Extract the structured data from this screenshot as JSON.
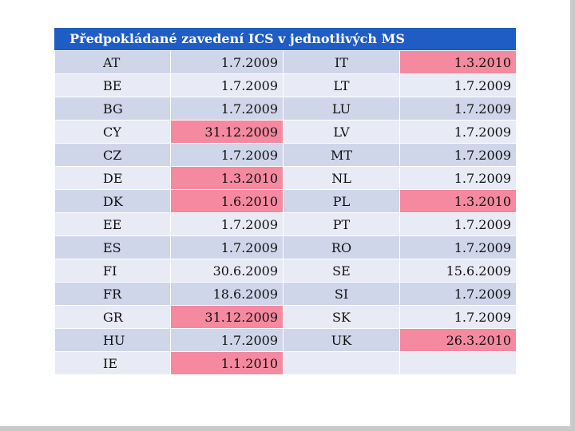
{
  "title": "Předpokládané zavedení ICS v jednotlivých MS",
  "colors": {
    "header": "#1f5cc4",
    "row_dark": "#cfd6ea",
    "row_light": "#e8ebf5",
    "highlight": "#f4899f"
  },
  "rows": [
    {
      "c1": "AT",
      "d1": "1.7.2009",
      "h1": false,
      "c2": "IT",
      "d2": "1.3.2010",
      "h2": true
    },
    {
      "c1": "BE",
      "d1": "1.7.2009",
      "h1": false,
      "c2": "LT",
      "d2": "1.7.2009",
      "h2": false
    },
    {
      "c1": "BG",
      "d1": "1.7.2009",
      "h1": false,
      "c2": "LU",
      "d2": "1.7.2009",
      "h2": false
    },
    {
      "c1": "CY",
      "d1": "31.12.2009",
      "h1": true,
      "c2": "LV",
      "d2": "1.7.2009",
      "h2": false
    },
    {
      "c1": "CZ",
      "d1": "1.7.2009",
      "h1": false,
      "c2": "MT",
      "d2": "1.7.2009",
      "h2": false
    },
    {
      "c1": "DE",
      "d1": "1.3.2010",
      "h1": true,
      "c2": "NL",
      "d2": "1.7.2009",
      "h2": false
    },
    {
      "c1": "DK",
      "d1": "1.6.2010",
      "h1": true,
      "c2": "PL",
      "d2": "1.3.2010",
      "h2": true
    },
    {
      "c1": "EE",
      "d1": "1.7.2009",
      "h1": false,
      "c2": "PT",
      "d2": "1.7.2009",
      "h2": false
    },
    {
      "c1": "ES",
      "d1": "1.7.2009",
      "h1": false,
      "c2": "RO",
      "d2": "1.7.2009",
      "h2": false
    },
    {
      "c1": "FI",
      "d1": "30.6.2009",
      "h1": false,
      "c2": "SE",
      "d2": "15.6.2009",
      "h2": false
    },
    {
      "c1": "FR",
      "d1": "18.6.2009",
      "h1": false,
      "c2": "SI",
      "d2": "1.7.2009",
      "h2": false
    },
    {
      "c1": "GR",
      "d1": "31.12.2009",
      "h1": true,
      "c2": "SK",
      "d2": "1.7.2009",
      "h2": false
    },
    {
      "c1": "HU",
      "d1": "1.7.2009",
      "h1": false,
      "c2": "UK",
      "d2": "26.3.2010",
      "h2": true
    },
    {
      "c1": "IE",
      "d1": "1.1.2010",
      "h1": true,
      "c2": "",
      "d2": "",
      "h2": false
    }
  ]
}
